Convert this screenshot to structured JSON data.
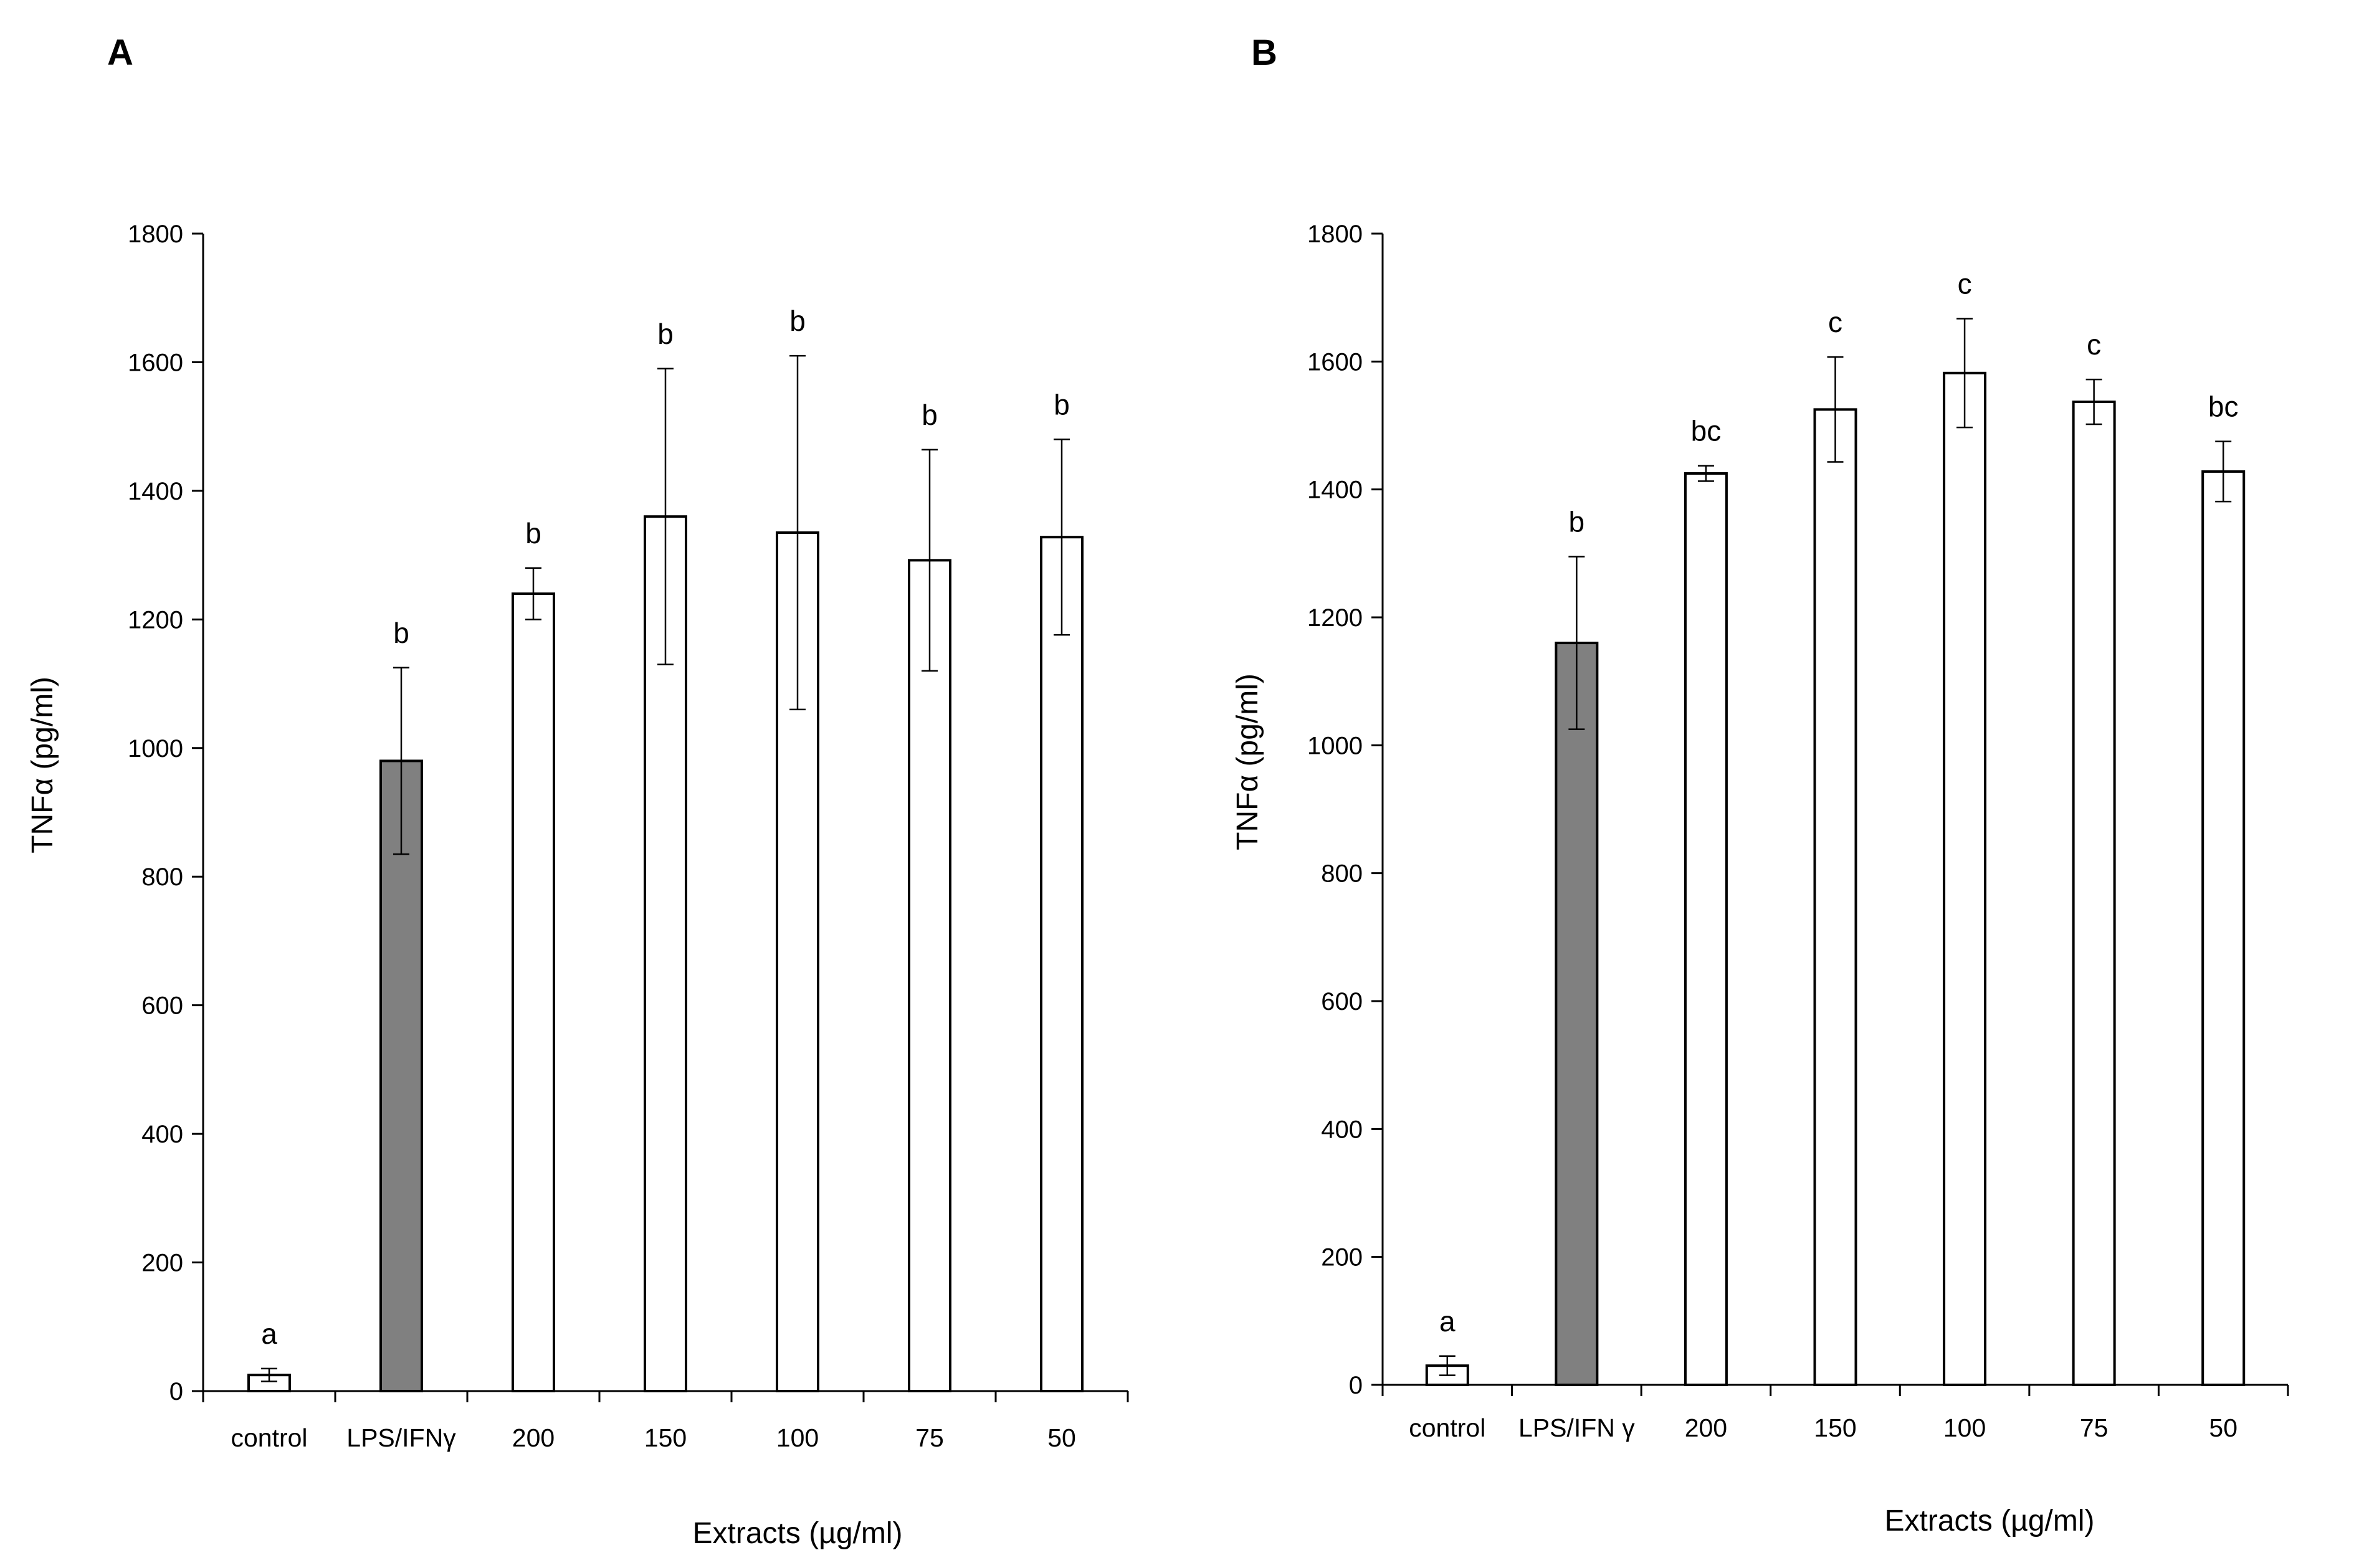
{
  "colors": {
    "control_bar": "#ffffff",
    "positive_control_bar": "#808080",
    "extract_bar": "#ffffff",
    "stroke": "#000000"
  },
  "chart_data": [
    {
      "type": "bar",
      "panel": "A",
      "categories": [
        "control",
        "LPS/IFNγ",
        "200",
        "150",
        "100",
        "75",
        "50"
      ],
      "values": [
        25,
        980,
        1240,
        1360,
        1335,
        1292,
        1328
      ],
      "error": [
        10,
        145,
        40,
        230,
        275,
        172,
        152
      ],
      "significance": [
        "a",
        "b",
        "b",
        "b",
        "b",
        "b",
        "b"
      ],
      "fills": [
        "#ffffff",
        "#808080",
        "#ffffff",
        "#ffffff",
        "#ffffff",
        "#ffffff",
        "#ffffff"
      ],
      "title": "",
      "xlabel": "Extracts  (µg/ml)",
      "ylabel": "TNFα  (pg/ml)",
      "ylim": [
        0,
        1800
      ],
      "yticks": [
        "0",
        "200",
        "400",
        "600",
        "800",
        "1000",
        "1200",
        "1400",
        "1600",
        "1800"
      ],
      "grid": false,
      "legend": "none"
    },
    {
      "type": "bar",
      "panel": "B",
      "categories": [
        "control",
        "LPS/IFN γ",
        "200",
        "150",
        "100",
        "75",
        "50"
      ],
      "values": [
        30,
        1160,
        1425,
        1525,
        1582,
        1537,
        1428
      ],
      "error": [
        15,
        135,
        12,
        82,
        85,
        35,
        47
      ],
      "significance": [
        "a",
        "b",
        "bc",
        "c",
        "c",
        "c",
        "bc"
      ],
      "fills": [
        "#ffffff",
        "#808080",
        "#ffffff",
        "#ffffff",
        "#ffffff",
        "#ffffff",
        "#ffffff"
      ],
      "title": "",
      "xlabel": "Extracts  (µg/ml)",
      "ylabel": "TNFα  (pg/ml)",
      "ylim": [
        0,
        1800
      ],
      "yticks": [
        "0",
        "200",
        "400",
        "600",
        "800",
        "1000",
        "1200",
        "1400",
        "1600",
        "1800"
      ],
      "grid": false,
      "legend": "none"
    }
  ]
}
